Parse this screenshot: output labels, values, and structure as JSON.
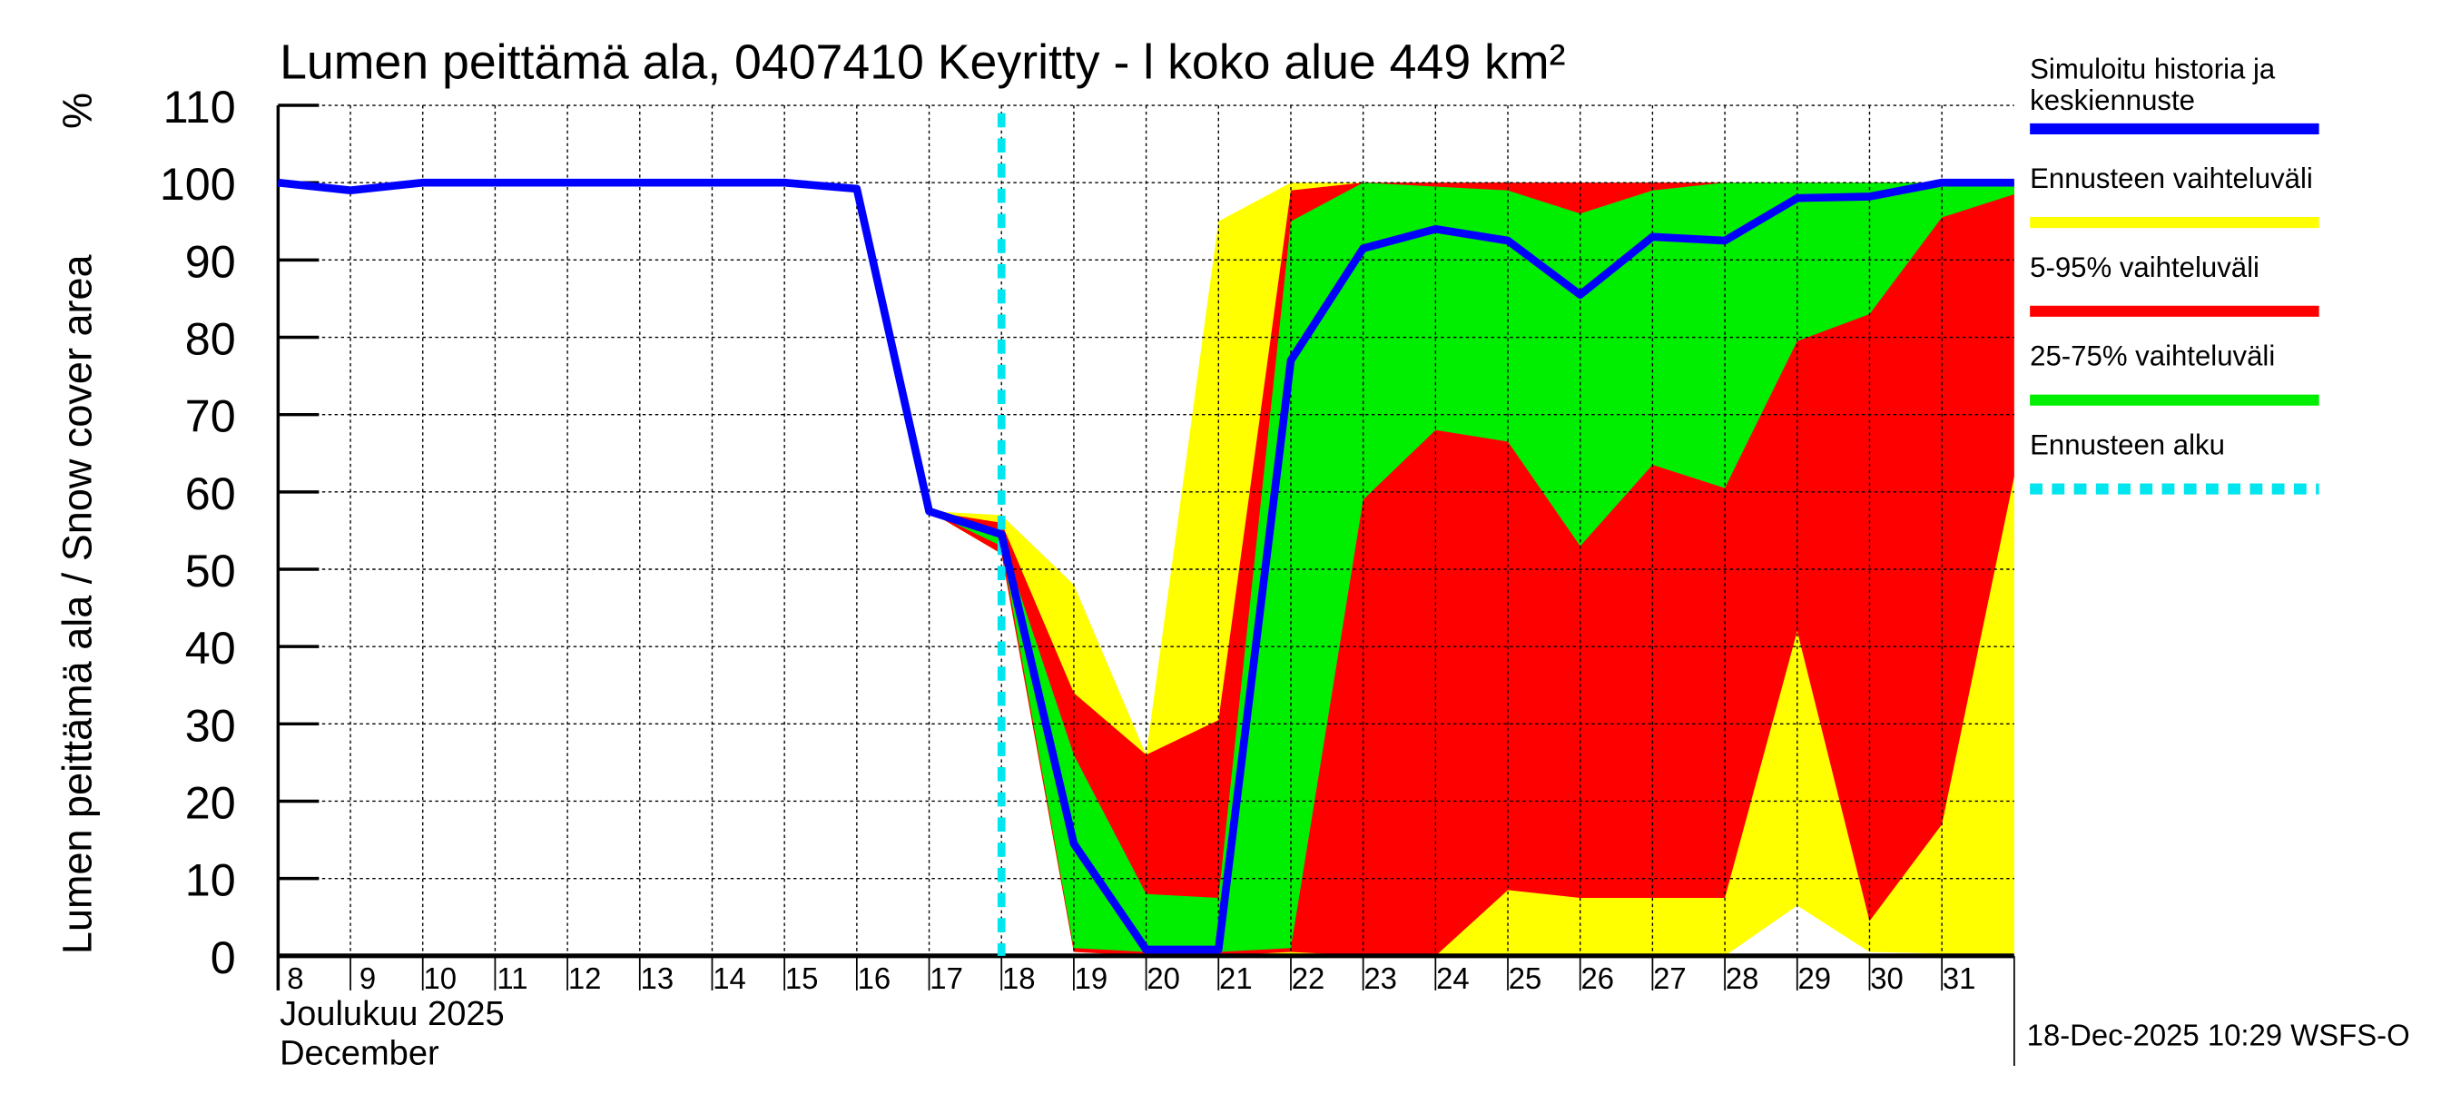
{
  "chart_data": {
    "type": "area",
    "title": "Lumen peittämä ala, 0407410 Keyritty - l koko alue 449 km²",
    "ylabel": "Lumen peittämä ala / Snow cover area",
    "yunit": "%",
    "xlabel_fi": "Joulukuu  2025",
    "xlabel_en": "December",
    "ylim": [
      0,
      110
    ],
    "yticks": [
      0,
      10,
      20,
      30,
      40,
      50,
      60,
      70,
      80,
      90,
      100,
      110
    ],
    "xlim": [
      8,
      32
    ],
    "xticks": [
      "8",
      "9",
      "10",
      "11",
      "12",
      "13",
      "14",
      "15",
      "16",
      "17",
      "18",
      "19",
      "20",
      "21",
      "22",
      "23",
      "24",
      "25",
      "26",
      "27",
      "28",
      "29",
      "30",
      "31"
    ],
    "grid": true,
    "forecast_start_day": 18,
    "timestamp": "18-Dec-2025 10:29 WSFS-O",
    "colors": {
      "median": "#0000ff",
      "range": "#ffff00",
      "p5_95": "#ff0000",
      "p25_75": "#00ee00",
      "start": "#00e5ee"
    },
    "legend": [
      {
        "label": "Simuloitu historia ja keskiennuste",
        "color": "#0000ff"
      },
      {
        "label": "Ennusteen vaihteluväli",
        "color": "#ffff00"
      },
      {
        "label": "5-95% vaihteluväli",
        "color": "#ff0000"
      },
      {
        "label": "25-75% vaihteluväli",
        "color": "#00ee00"
      },
      {
        "label": "Ennusteen alku",
        "color": "#00e5ee"
      }
    ],
    "median": {
      "x": [
        8,
        9,
        10,
        11,
        12,
        13,
        14,
        15,
        16,
        17,
        18,
        19,
        20,
        21,
        22,
        23,
        24,
        25,
        26,
        27,
        28,
        29,
        30,
        31,
        32
      ],
      "y": [
        100,
        99,
        100,
        100,
        100,
        100,
        100,
        100,
        99.2,
        57.5,
        54.5,
        14.5,
        0.8,
        0.8,
        77,
        91.5,
        94,
        92.5,
        85.5,
        93,
        92.5,
        98,
        98.2,
        100,
        100
      ]
    },
    "range": {
      "x": [
        17,
        18,
        19,
        20,
        21,
        22,
        23,
        24,
        25,
        26,
        27,
        28,
        29,
        30,
        31,
        32
      ],
      "upper": [
        57.5,
        57,
        48,
        26,
        95,
        100,
        100,
        100,
        100,
        100,
        100,
        100,
        100,
        100,
        100,
        100
      ],
      "lower": [
        57.5,
        52,
        0.5,
        0,
        0,
        0,
        0,
        0,
        0,
        0,
        0,
        0,
        6.5,
        0.5,
        0.3,
        0.3
      ]
    },
    "p5_95": {
      "x": [
        17,
        18,
        19,
        20,
        21,
        22,
        23,
        24,
        25,
        26,
        27,
        28,
        29,
        30,
        31,
        32
      ],
      "upper": [
        57.5,
        56,
        34,
        26,
        30.5,
        99,
        100,
        100,
        100,
        100,
        100,
        100,
        100,
        100,
        100,
        100
      ],
      "lower": [
        57.5,
        52,
        0.5,
        0,
        0,
        0.5,
        0,
        0,
        8.5,
        7.5,
        7.5,
        7.5,
        42,
        4.5,
        17,
        62
      ]
    },
    "p25_75": {
      "x": [
        17,
        18,
        19,
        20,
        21,
        22,
        23,
        24,
        25,
        26,
        27,
        28,
        29,
        30,
        31,
        32
      ],
      "upper": [
        57.5,
        54,
        26,
        8,
        7.5,
        95,
        100,
        99.5,
        99,
        96,
        99,
        100,
        100,
        100,
        100,
        100
      ],
      "lower": [
        57.5,
        53,
        1,
        0.5,
        0.5,
        1,
        59,
        68,
        66.5,
        53,
        63.5,
        60.5,
        79.5,
        83,
        95.5,
        98.5
      ]
    }
  }
}
